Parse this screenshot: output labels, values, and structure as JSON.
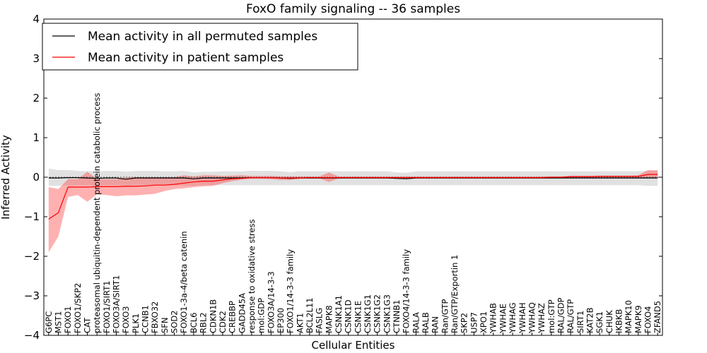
{
  "chart_data": {
    "type": "line",
    "title": "FoxO family signaling -- 36 samples",
    "xlabel": "Cellular Entities",
    "ylabel": "Inferred Activity",
    "ylim": [
      -4,
      4
    ],
    "yticks": [
      -4,
      -3,
      -2,
      -1,
      0,
      1,
      2,
      3,
      4
    ],
    "legend_position": "top-left",
    "categories": [
      "G6PC",
      "MST1",
      "FOXO1",
      "FOXO1/SKP2",
      "CAT",
      "proteasomal ubiquitin-dependent protein catabolic process",
      "FOXO1/SIRT1",
      "FOXO3A/SIRT1",
      "FOXO3",
      "PLK1",
      "CCNB1",
      "FBXO32",
      "SFN",
      "SOD2",
      "FOXO1-3a-4/beta catenin",
      "BCL6",
      "RBL2",
      "CDKN1B",
      "CDK2",
      "CREBBP",
      "GADD45A",
      "response to oxidative stress",
      "mol:GDP",
      "FOXO3A/14-3-3",
      "EP300",
      "FOXO1/14-3-3 family",
      "AKT1",
      "BCL2L11",
      "FASLG",
      "MAPK8",
      "CSNK1A1",
      "CSNK1D",
      "CSNK1E",
      "CSNK1G1",
      "CSNK1G2",
      "CSNK1G3",
      "CTNNB1",
      "FOXO4/14-3-3 family",
      "RALA",
      "RALB",
      "RAN",
      "Ran/GTP",
      "Ran/GTP/Exportin 1",
      "SKP2",
      "USP7",
      "XPO1",
      "YWHAB",
      "YWHAE",
      "YWHAG",
      "YWHAH",
      "YWHAQ",
      "YWHAZ",
      "mol:GTP",
      "RAL/GDP",
      "RAL/GTP",
      "SIRT1",
      "KAT2B",
      "SGK1",
      "CHUK",
      "IKBKB",
      "MAPK10",
      "MAPK9",
      "FOXO4",
      "ZFAND5"
    ],
    "series": [
      {
        "name": "Mean activity in all permuted samples",
        "color": "#000000",
        "values": [
          -0.02,
          -0.02,
          -0.01,
          -0.01,
          -0.02,
          -0.03,
          -0.02,
          -0.02,
          -0.05,
          -0.02,
          -0.02,
          -0.02,
          -0.02,
          -0.02,
          -0.02,
          -0.04,
          -0.02,
          -0.02,
          -0.02,
          -0.02,
          -0.02,
          -0.01,
          -0.01,
          -0.01,
          -0.02,
          -0.03,
          -0.02,
          -0.02,
          -0.02,
          -0.02,
          -0.02,
          -0.02,
          -0.02,
          -0.02,
          -0.02,
          -0.02,
          -0.03,
          -0.04,
          -0.02,
          -0.02,
          -0.02,
          -0.02,
          -0.02,
          -0.02,
          -0.02,
          -0.02,
          -0.02,
          -0.02,
          -0.02,
          -0.02,
          -0.02,
          -0.02,
          -0.02,
          -0.02,
          -0.02,
          -0.02,
          -0.02,
          -0.02,
          -0.02,
          -0.02,
          -0.02,
          -0.02,
          -0.02,
          -0.02
        ],
        "lower": [
          -0.22,
          -0.22,
          -0.2,
          -0.2,
          -0.2,
          -0.22,
          -0.2,
          -0.2,
          -0.22,
          -0.2,
          -0.2,
          -0.2,
          -0.2,
          -0.2,
          -0.22,
          -0.22,
          -0.2,
          -0.2,
          -0.2,
          -0.2,
          -0.2,
          -0.2,
          -0.2,
          -0.2,
          -0.2,
          -0.2,
          -0.2,
          -0.2,
          -0.2,
          -0.2,
          -0.2,
          -0.2,
          -0.2,
          -0.2,
          -0.2,
          -0.2,
          -0.2,
          -0.2,
          -0.2,
          -0.2,
          -0.2,
          -0.2,
          -0.2,
          -0.2,
          -0.2,
          -0.2,
          -0.2,
          -0.2,
          -0.2,
          -0.2,
          -0.2,
          -0.2,
          -0.2,
          -0.2,
          -0.2,
          -0.2,
          -0.2,
          -0.2,
          -0.2,
          -0.2,
          -0.2,
          -0.2,
          -0.22,
          -0.22
        ],
        "upper": [
          0.22,
          0.18,
          0.18,
          0.16,
          0.15,
          0.15,
          0.16,
          0.16,
          0.14,
          0.16,
          0.16,
          0.16,
          0.15,
          0.15,
          0.16,
          0.12,
          0.14,
          0.14,
          0.15,
          0.15,
          0.15,
          0.16,
          0.16,
          0.16,
          0.15,
          0.13,
          0.15,
          0.15,
          0.15,
          0.15,
          0.15,
          0.15,
          0.15,
          0.15,
          0.15,
          0.15,
          0.12,
          0.11,
          0.15,
          0.15,
          0.15,
          0.15,
          0.15,
          0.15,
          0.15,
          0.15,
          0.15,
          0.15,
          0.15,
          0.15,
          0.15,
          0.15,
          0.15,
          0.15,
          0.15,
          0.15,
          0.15,
          0.15,
          0.15,
          0.15,
          0.15,
          0.15,
          0.16,
          0.16
        ]
      },
      {
        "name": "Mean activity in patient samples",
        "color": "#ff0000",
        "values": [
          -1.06,
          -0.9,
          -0.25,
          -0.25,
          -0.25,
          -0.24,
          -0.24,
          -0.24,
          -0.23,
          -0.23,
          -0.22,
          -0.2,
          -0.2,
          -0.18,
          -0.15,
          -0.12,
          -0.1,
          -0.1,
          -0.07,
          -0.04,
          -0.03,
          -0.01,
          -0.01,
          -0.01,
          -0.02,
          -0.02,
          -0.02,
          -0.01,
          -0.01,
          -0.01,
          -0.01,
          -0.01,
          -0.01,
          -0.01,
          -0.01,
          -0.01,
          -0.01,
          -0.01,
          -0.01,
          -0.01,
          -0.01,
          -0.01,
          -0.01,
          -0.01,
          -0.01,
          -0.01,
          -0.01,
          -0.01,
          -0.01,
          -0.01,
          -0.01,
          -0.01,
          0.0,
          0.0,
          0.01,
          0.01,
          0.01,
          0.02,
          0.02,
          0.02,
          0.02,
          0.02,
          0.07,
          0.07
        ],
        "lower": [
          -1.9,
          -1.5,
          -0.5,
          -0.45,
          -0.62,
          -0.43,
          -0.45,
          -0.48,
          -0.46,
          -0.46,
          -0.44,
          -0.42,
          -0.35,
          -0.3,
          -0.28,
          -0.25,
          -0.23,
          -0.22,
          -0.15,
          -0.1,
          -0.06,
          -0.04,
          -0.04,
          -0.05,
          -0.07,
          -0.07,
          -0.04,
          -0.03,
          -0.03,
          -0.12,
          -0.03,
          -0.03,
          -0.03,
          -0.03,
          -0.03,
          -0.03,
          -0.03,
          -0.03,
          -0.03,
          -0.03,
          -0.03,
          -0.03,
          -0.03,
          -0.03,
          -0.03,
          -0.03,
          -0.03,
          -0.03,
          -0.03,
          -0.03,
          -0.03,
          -0.03,
          -0.02,
          -0.02,
          -0.01,
          -0.01,
          -0.01,
          -0.01,
          -0.01,
          -0.01,
          -0.01,
          -0.01,
          -0.02,
          -0.02
        ],
        "upper": [
          -0.25,
          -0.3,
          -0.05,
          -0.05,
          0.14,
          -0.05,
          -0.05,
          -0.05,
          0.0,
          0.0,
          0.0,
          0.0,
          0.0,
          0.0,
          0.05,
          0.02,
          0.05,
          0.05,
          0.03,
          0.04,
          0.05,
          0.03,
          0.03,
          0.03,
          0.02,
          0.02,
          0.02,
          0.02,
          0.02,
          0.12,
          0.02,
          0.02,
          0.02,
          0.02,
          0.02,
          0.02,
          0.02,
          0.02,
          0.02,
          0.02,
          0.02,
          0.02,
          0.02,
          0.02,
          0.02,
          0.02,
          0.02,
          0.02,
          0.02,
          0.02,
          0.02,
          0.02,
          0.02,
          0.02,
          0.04,
          0.04,
          0.04,
          0.04,
          0.04,
          0.04,
          0.04,
          0.05,
          0.18,
          0.18
        ]
      }
    ],
    "band_colors": {
      "permuted": "#c8c8c8",
      "patient": "#ff5050"
    },
    "zero_line_color": "#555555"
  }
}
